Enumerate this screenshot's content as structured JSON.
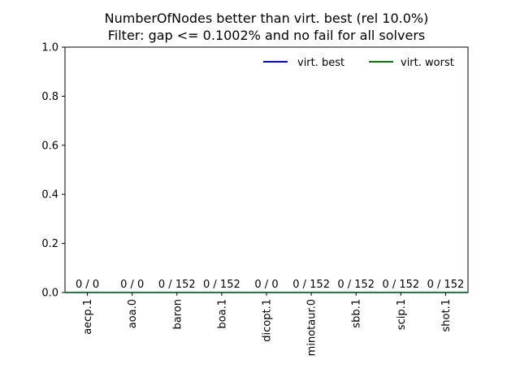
{
  "chart_data": {
    "type": "bar",
    "title_lines": [
      "NumberOfNodes better than virt. best (rel 10.0%)",
      "Filter: gap <= 0.1002% and no fail for all solvers"
    ],
    "xlabel": "",
    "ylabel": "",
    "ylim": [
      0,
      1.0
    ],
    "yticks": [
      "0.0",
      "0.2",
      "0.4",
      "0.6",
      "0.8",
      "1.0"
    ],
    "categories": [
      "aecp.1",
      "aoa.0",
      "baron",
      "boa.1",
      "dicopt.1",
      "minotaur.0",
      "sbb.1",
      "scip.1",
      "shot.1"
    ],
    "values": [
      0,
      0,
      0,
      0,
      0,
      0,
      0,
      0,
      0
    ],
    "bar_labels": [
      "0 / 0",
      "0 / 0",
      "0 / 152",
      "0 / 152",
      "0 / 0",
      "0 / 152",
      "0 / 152",
      "0 / 152",
      "0 / 152"
    ],
    "series": [
      {
        "name": "virt. best",
        "color": "#0000ff",
        "values": [
          0,
          0,
          0,
          0,
          0,
          0,
          0,
          0,
          0
        ]
      },
      {
        "name": "virt. worst",
        "color": "#008000",
        "values": [
          0,
          0,
          0,
          0,
          0,
          0,
          0,
          0,
          0
        ]
      }
    ],
    "legend_position": "top-right",
    "grid": false
  }
}
